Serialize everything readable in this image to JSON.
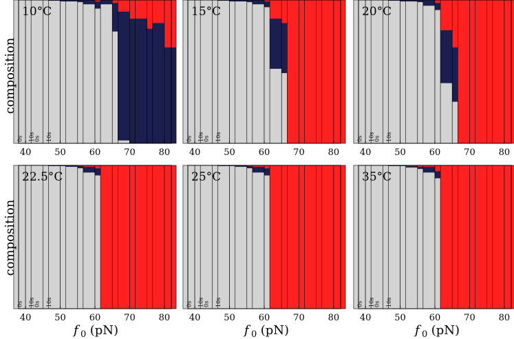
{
  "figure": {
    "ylabel": "composition",
    "xlabel_symbol": "f",
    "xlabel_sub": "0",
    "xlabel_unit": " (pN)"
  },
  "colors": {
    "unfolded": "#1b1f4f",
    "folded": "#ff2020",
    "other": "#d3d3d3",
    "frame": "#000000"
  },
  "chart_data": [
    {
      "type": "bar",
      "title": "10°C",
      "xlabel": "f0 (pN)",
      "ylabel": "composition",
      "forces": [
        40,
        45,
        50,
        55,
        60,
        65,
        70,
        75,
        80
      ],
      "xticks": [
        40,
        50,
        60,
        70,
        80
      ],
      "xlim": [
        38,
        82
      ],
      "ylim": [
        0,
        1
      ],
      "time_labels": [
        "0s",
        "10s"
      ],
      "bars": [
        {
          "f": 40,
          "t0": {
            "red": 0,
            "blue": 0
          },
          "t10": {
            "red": 0,
            "blue": 0
          }
        },
        {
          "f": 45,
          "t0": {
            "red": 0,
            "blue": 0
          },
          "t10": {
            "red": 0,
            "blue": 0
          }
        },
        {
          "f": 50,
          "t0": {
            "red": 0,
            "blue": 0.005
          },
          "t10": {
            "red": 0,
            "blue": 0.01
          }
        },
        {
          "f": 55,
          "t0": {
            "red": 0,
            "blue": 0.01
          },
          "t10": {
            "red": 0,
            "blue": 0.015
          }
        },
        {
          "f": 60,
          "t0": {
            "red": 0,
            "blue": 0.03
          },
          "t10": {
            "red": 0.01,
            "blue": 0.05
          }
        },
        {
          "f": 65,
          "t0": {
            "red": 0,
            "blue": 0.03
          },
          "t10": {
            "red": 0.02,
            "blue": 0.2
          }
        },
        {
          "f": 70,
          "t0": {
            "red": 0.08,
            "blue": 0.9
          },
          "t10": {
            "red": 0.13,
            "blue": 0.93
          }
        },
        {
          "f": 75,
          "t0": {
            "red": 0.13,
            "blue": 0.98
          },
          "t10": {
            "red": 0.2,
            "blue": 0.98
          }
        },
        {
          "f": 80,
          "t0": {
            "red": 0.16,
            "blue": 0.99
          },
          "t10": {
            "red": 0.33,
            "blue": 0.99
          }
        }
      ]
    },
    {
      "type": "bar",
      "title": "15°C",
      "xlabel": "f0 (pN)",
      "ylabel": "composition",
      "forces": [
        40,
        45,
        50,
        55,
        60,
        65,
        70,
        75,
        80
      ],
      "xticks": [
        40,
        50,
        60,
        70,
        80
      ],
      "xlim": [
        38,
        82
      ],
      "ylim": [
        0,
        1
      ],
      "time_labels": [
        "0s",
        "10s"
      ],
      "bars": [
        {
          "f": 40,
          "t0": {
            "red": 0,
            "blue": 0
          },
          "t10": {
            "red": 0,
            "blue": 0
          }
        },
        {
          "f": 45,
          "t0": {
            "red": 0,
            "blue": 0
          },
          "t10": {
            "red": 0,
            "blue": 0
          }
        },
        {
          "f": 50,
          "t0": {
            "red": 0,
            "blue": 0.005
          },
          "t10": {
            "red": 0,
            "blue": 0.01
          }
        },
        {
          "f": 55,
          "t0": {
            "red": 0,
            "blue": 0.01
          },
          "t10": {
            "red": 0,
            "blue": 0.015
          }
        },
        {
          "f": 60,
          "t0": {
            "red": 0,
            "blue": 0.03
          },
          "t10": {
            "red": 0.01,
            "blue": 0.04
          }
        },
        {
          "f": 65,
          "t0": {
            "red": 0.13,
            "blue": 0.35
          },
          "t10": {
            "red": 0.16,
            "blue": 0.35
          }
        },
        {
          "f": 70,
          "t0": {
            "red": 1,
            "blue": 0
          },
          "t10": {
            "red": 1,
            "blue": 0
          }
        },
        {
          "f": 75,
          "t0": {
            "red": 1,
            "blue": 0
          },
          "t10": {
            "red": 1,
            "blue": 0
          }
        },
        {
          "f": 80,
          "t0": {
            "red": 1,
            "blue": 0
          },
          "t10": {
            "red": 1,
            "blue": 0
          }
        }
      ]
    },
    {
      "type": "bar",
      "title": "20°C",
      "xlabel": "f0 (pN)",
      "ylabel": "composition",
      "forces": [
        40,
        45,
        50,
        55,
        60,
        65,
        70,
        75,
        80
      ],
      "xticks": [
        40,
        50,
        60,
        70,
        80
      ],
      "xlim": [
        38,
        82
      ],
      "ylim": [
        0,
        1
      ],
      "time_labels": [
        "0s",
        "10s"
      ],
      "bars": [
        {
          "f": 40,
          "t0": {
            "red": 0,
            "blue": 0
          },
          "t10": {
            "red": 0,
            "blue": 0
          }
        },
        {
          "f": 45,
          "t0": {
            "red": 0,
            "blue": 0
          },
          "t10": {
            "red": 0,
            "blue": 0
          }
        },
        {
          "f": 50,
          "t0": {
            "red": 0,
            "blue": 0.005
          },
          "t10": {
            "red": 0,
            "blue": 0.01
          }
        },
        {
          "f": 55,
          "t0": {
            "red": 0,
            "blue": 0.01
          },
          "t10": {
            "red": 0,
            "blue": 0.015
          }
        },
        {
          "f": 60,
          "t0": {
            "red": 0,
            "blue": 0.04
          },
          "t10": {
            "red": 0.02,
            "blue": 0.05
          }
        },
        {
          "f": 65,
          "t0": {
            "red": 0.21,
            "blue": 0.37
          },
          "t10": {
            "red": 0.33,
            "blue": 0.38
          }
        },
        {
          "f": 70,
          "t0": {
            "red": 1,
            "blue": 0
          },
          "t10": {
            "red": 1,
            "blue": 0
          }
        },
        {
          "f": 75,
          "t0": {
            "red": 1,
            "blue": 0
          },
          "t10": {
            "red": 1,
            "blue": 0
          }
        },
        {
          "f": 80,
          "t0": {
            "red": 1,
            "blue": 0
          },
          "t10": {
            "red": 1,
            "blue": 0
          }
        }
      ]
    },
    {
      "type": "bar",
      "title": "22.5°C",
      "xlabel": "f0 (pN)",
      "ylabel": "composition",
      "forces": [
        40,
        45,
        50,
        55,
        60,
        65,
        70,
        75,
        80
      ],
      "xticks": [
        40,
        50,
        60,
        70,
        80
      ],
      "xlim": [
        38,
        82
      ],
      "ylim": [
        0,
        1
      ],
      "time_labels": [
        "0s",
        "10s"
      ],
      "bars": [
        {
          "f": 40,
          "t0": {
            "red": 0,
            "blue": 0
          },
          "t10": {
            "red": 0,
            "blue": 0
          }
        },
        {
          "f": 45,
          "t0": {
            "red": 0,
            "blue": 0
          },
          "t10": {
            "red": 0,
            "blue": 0
          }
        },
        {
          "f": 50,
          "t0": {
            "red": 0,
            "blue": 0.005
          },
          "t10": {
            "red": 0,
            "blue": 0.005
          }
        },
        {
          "f": 55,
          "t0": {
            "red": 0,
            "blue": 0.01
          },
          "t10": {
            "red": 0.005,
            "blue": 0.015
          }
        },
        {
          "f": 60,
          "t0": {
            "red": 0.01,
            "blue": 0.04
          },
          "t10": {
            "red": 0.02,
            "blue": 0.05
          }
        },
        {
          "f": 65,
          "t0": {
            "red": 1,
            "blue": 0
          },
          "t10": {
            "red": 1,
            "blue": 0
          }
        },
        {
          "f": 70,
          "t0": {
            "red": 1,
            "blue": 0
          },
          "t10": {
            "red": 1,
            "blue": 0
          }
        },
        {
          "f": 75,
          "t0": {
            "red": 1,
            "blue": 0
          },
          "t10": {
            "red": 1,
            "blue": 0
          }
        },
        {
          "f": 80,
          "t0": {
            "red": 1,
            "blue": 0
          },
          "t10": {
            "red": 1,
            "blue": 0
          }
        }
      ]
    },
    {
      "type": "bar",
      "title": "25°C",
      "xlabel": "f0 (pN)",
      "ylabel": "composition",
      "forces": [
        40,
        45,
        50,
        55,
        60,
        65,
        70,
        75,
        80
      ],
      "xticks": [
        40,
        50,
        60,
        70,
        80
      ],
      "xlim": [
        38,
        82
      ],
      "ylim": [
        0,
        1
      ],
      "time_labels": [
        "0s",
        "10s"
      ],
      "bars": [
        {
          "f": 40,
          "t0": {
            "red": 0,
            "blue": 0
          },
          "t10": {
            "red": 0,
            "blue": 0
          }
        },
        {
          "f": 45,
          "t0": {
            "red": 0,
            "blue": 0
          },
          "t10": {
            "red": 0,
            "blue": 0
          }
        },
        {
          "f": 50,
          "t0": {
            "red": 0,
            "blue": 0.005
          },
          "t10": {
            "red": 0,
            "blue": 0.005
          }
        },
        {
          "f": 55,
          "t0": {
            "red": 0,
            "blue": 0.01
          },
          "t10": {
            "red": 0.005,
            "blue": 0.015
          }
        },
        {
          "f": 60,
          "t0": {
            "red": 0.01,
            "blue": 0.04
          },
          "t10": {
            "red": 0.02,
            "blue": 0.05
          }
        },
        {
          "f": 65,
          "t0": {
            "red": 1,
            "blue": 0
          },
          "t10": {
            "red": 1,
            "blue": 0
          }
        },
        {
          "f": 70,
          "t0": {
            "red": 1,
            "blue": 0
          },
          "t10": {
            "red": 1,
            "blue": 0
          }
        },
        {
          "f": 75,
          "t0": {
            "red": 1,
            "blue": 0
          },
          "t10": {
            "red": 1,
            "blue": 0
          }
        },
        {
          "f": 80,
          "t0": {
            "red": 1,
            "blue": 0
          },
          "t10": {
            "red": 1,
            "blue": 0
          }
        }
      ]
    },
    {
      "type": "bar",
      "title": "35°C",
      "xlabel": "f0 (pN)",
      "ylabel": "composition",
      "forces": [
        40,
        45,
        50,
        55,
        60,
        65,
        70,
        75,
        80
      ],
      "xticks": [
        40,
        50,
        60,
        70,
        80
      ],
      "xlim": [
        38,
        82
      ],
      "ylim": [
        0,
        1
      ],
      "time_labels": [
        "0s",
        "10s"
      ],
      "bars": [
        {
          "f": 40,
          "t0": {
            "red": 0,
            "blue": 0
          },
          "t10": {
            "red": 0,
            "blue": 0
          }
        },
        {
          "f": 45,
          "t0": {
            "red": 0,
            "blue": 0
          },
          "t10": {
            "red": 0,
            "blue": 0
          }
        },
        {
          "f": 50,
          "t0": {
            "red": 0,
            "blue": 0.005
          },
          "t10": {
            "red": 0,
            "blue": 0.005
          }
        },
        {
          "f": 55,
          "t0": {
            "red": 0.005,
            "blue": 0.01
          },
          "t10": {
            "red": 0.01,
            "blue": 0.015
          }
        },
        {
          "f": 60,
          "t0": {
            "red": 0.01,
            "blue": 0.04
          },
          "t10": {
            "red": 0.04,
            "blue": 0.05
          }
        },
        {
          "f": 65,
          "t0": {
            "red": 1,
            "blue": 0
          },
          "t10": {
            "red": 1,
            "blue": 0
          }
        },
        {
          "f": 70,
          "t0": {
            "red": 1,
            "blue": 0
          },
          "t10": {
            "red": 1,
            "blue": 0
          }
        },
        {
          "f": 75,
          "t0": {
            "red": 1,
            "blue": 0
          },
          "t10": {
            "red": 1,
            "blue": 0
          }
        },
        {
          "f": 80,
          "t0": {
            "red": 1,
            "blue": 0
          },
          "t10": {
            "red": 1,
            "blue": 0
          }
        }
      ]
    }
  ]
}
